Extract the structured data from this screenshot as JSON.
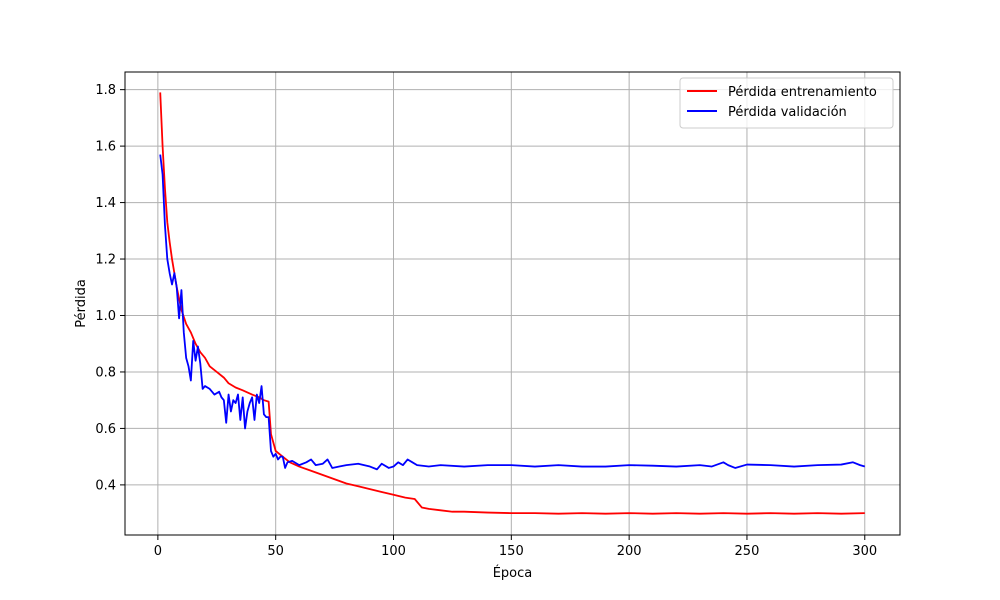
{
  "chart_data": {
    "type": "line",
    "title": "",
    "xlabel": "Época",
    "ylabel": "Pérdida",
    "xlim": [
      -13.95,
      314.95
    ],
    "ylim": [
      0.2225,
      1.8625
    ],
    "xticks": [
      0,
      50,
      100,
      150,
      200,
      250,
      300
    ],
    "yticks": [
      0.4,
      0.6,
      0.8,
      1.0,
      1.2,
      1.4,
      1.6,
      1.8
    ],
    "ytick_labels": [
      "0.4",
      "0.6",
      "0.8",
      "1.0",
      "1.2",
      "1.4",
      "1.6",
      "1.8"
    ],
    "grid": true,
    "legend_position": "upper-right",
    "series": [
      {
        "name": "Pérdida entrenamiento",
        "color": "#ff0000",
        "points": [
          [
            1,
            1.79
          ],
          [
            2,
            1.6
          ],
          [
            3,
            1.45
          ],
          [
            4,
            1.33
          ],
          [
            5,
            1.26
          ],
          [
            6,
            1.2
          ],
          [
            7,
            1.15
          ],
          [
            8,
            1.1
          ],
          [
            9,
            1.06
          ],
          [
            10,
            1.02
          ],
          [
            12,
            0.97
          ],
          [
            14,
            0.94
          ],
          [
            16,
            0.9
          ],
          [
            18,
            0.87
          ],
          [
            20,
            0.85
          ],
          [
            22,
            0.82
          ],
          [
            25,
            0.8
          ],
          [
            28,
            0.78
          ],
          [
            30,
            0.76
          ],
          [
            33,
            0.745
          ],
          [
            36,
            0.735
          ],
          [
            40,
            0.72
          ],
          [
            43,
            0.71
          ],
          [
            45,
            0.7
          ],
          [
            47,
            0.695
          ],
          [
            48,
            0.58
          ],
          [
            50,
            0.52
          ],
          [
            53,
            0.5
          ],
          [
            56,
            0.48
          ],
          [
            60,
            0.465
          ],
          [
            65,
            0.45
          ],
          [
            70,
            0.435
          ],
          [
            75,
            0.42
          ],
          [
            80,
            0.405
          ],
          [
            85,
            0.395
          ],
          [
            90,
            0.385
          ],
          [
            95,
            0.375
          ],
          [
            100,
            0.365
          ],
          [
            105,
            0.355
          ],
          [
            109,
            0.35
          ],
          [
            112,
            0.32
          ],
          [
            115,
            0.315
          ],
          [
            120,
            0.31
          ],
          [
            125,
            0.305
          ],
          [
            130,
            0.305
          ],
          [
            140,
            0.302
          ],
          [
            150,
            0.3
          ],
          [
            160,
            0.3
          ],
          [
            170,
            0.298
          ],
          [
            180,
            0.3
          ],
          [
            190,
            0.298
          ],
          [
            200,
            0.3
          ],
          [
            210,
            0.298
          ],
          [
            220,
            0.3
          ],
          [
            230,
            0.298
          ],
          [
            240,
            0.3
          ],
          [
            250,
            0.298
          ],
          [
            260,
            0.3
          ],
          [
            270,
            0.298
          ],
          [
            280,
            0.3
          ],
          [
            290,
            0.298
          ],
          [
            300,
            0.3
          ]
        ]
      },
      {
        "name": "Pérdida validación",
        "color": "#0000ff",
        "points": [
          [
            1,
            1.57
          ],
          [
            2,
            1.5
          ],
          [
            3,
            1.32
          ],
          [
            4,
            1.2
          ],
          [
            5,
            1.15
          ],
          [
            6,
            1.11
          ],
          [
            7,
            1.15
          ],
          [
            8,
            1.1
          ],
          [
            9,
            0.99
          ],
          [
            10,
            1.09
          ],
          [
            11,
            0.94
          ],
          [
            12,
            0.85
          ],
          [
            13,
            0.82
          ],
          [
            14,
            0.77
          ],
          [
            15,
            0.91
          ],
          [
            16,
            0.84
          ],
          [
            17,
            0.89
          ],
          [
            18,
            0.83
          ],
          [
            19,
            0.74
          ],
          [
            20,
            0.75
          ],
          [
            22,
            0.74
          ],
          [
            24,
            0.72
          ],
          [
            26,
            0.73
          ],
          [
            27,
            0.71
          ],
          [
            28,
            0.7
          ],
          [
            29,
            0.62
          ],
          [
            30,
            0.72
          ],
          [
            31,
            0.66
          ],
          [
            32,
            0.7
          ],
          [
            33,
            0.69
          ],
          [
            34,
            0.72
          ],
          [
            35,
            0.63
          ],
          [
            36,
            0.71
          ],
          [
            37,
            0.6
          ],
          [
            38,
            0.66
          ],
          [
            39,
            0.69
          ],
          [
            40,
            0.71
          ],
          [
            41,
            0.63
          ],
          [
            42,
            0.72
          ],
          [
            43,
            0.69
          ],
          [
            44,
            0.75
          ],
          [
            45,
            0.65
          ],
          [
            46,
            0.64
          ],
          [
            47,
            0.64
          ],
          [
            48,
            0.52
          ],
          [
            49,
            0.5
          ],
          [
            50,
            0.51
          ],
          [
            51,
            0.49
          ],
          [
            52,
            0.5
          ],
          [
            53,
            0.5
          ],
          [
            54,
            0.46
          ],
          [
            55,
            0.48
          ],
          [
            57,
            0.485
          ],
          [
            60,
            0.47
          ],
          [
            63,
            0.48
          ],
          [
            65,
            0.49
          ],
          [
            67,
            0.47
          ],
          [
            70,
            0.475
          ],
          [
            72,
            0.49
          ],
          [
            74,
            0.46
          ],
          [
            77,
            0.465
          ],
          [
            80,
            0.47
          ],
          [
            85,
            0.475
          ],
          [
            90,
            0.465
          ],
          [
            93,
            0.455
          ],
          [
            95,
            0.475
          ],
          [
            98,
            0.46
          ],
          [
            100,
            0.465
          ],
          [
            102,
            0.48
          ],
          [
            104,
            0.47
          ],
          [
            106,
            0.49
          ],
          [
            108,
            0.48
          ],
          [
            110,
            0.47
          ],
          [
            115,
            0.465
          ],
          [
            120,
            0.47
          ],
          [
            130,
            0.465
          ],
          [
            140,
            0.47
          ],
          [
            150,
            0.47
          ],
          [
            160,
            0.465
          ],
          [
            170,
            0.47
          ],
          [
            180,
            0.465
          ],
          [
            190,
            0.465
          ],
          [
            200,
            0.47
          ],
          [
            210,
            0.468
          ],
          [
            220,
            0.465
          ],
          [
            230,
            0.47
          ],
          [
            235,
            0.465
          ],
          [
            240,
            0.48
          ],
          [
            242,
            0.47
          ],
          [
            245,
            0.46
          ],
          [
            250,
            0.472
          ],
          [
            260,
            0.47
          ],
          [
            270,
            0.465
          ],
          [
            280,
            0.47
          ],
          [
            290,
            0.472
          ],
          [
            295,
            0.48
          ],
          [
            298,
            0.47
          ],
          [
            300,
            0.465
          ]
        ]
      }
    ]
  }
}
